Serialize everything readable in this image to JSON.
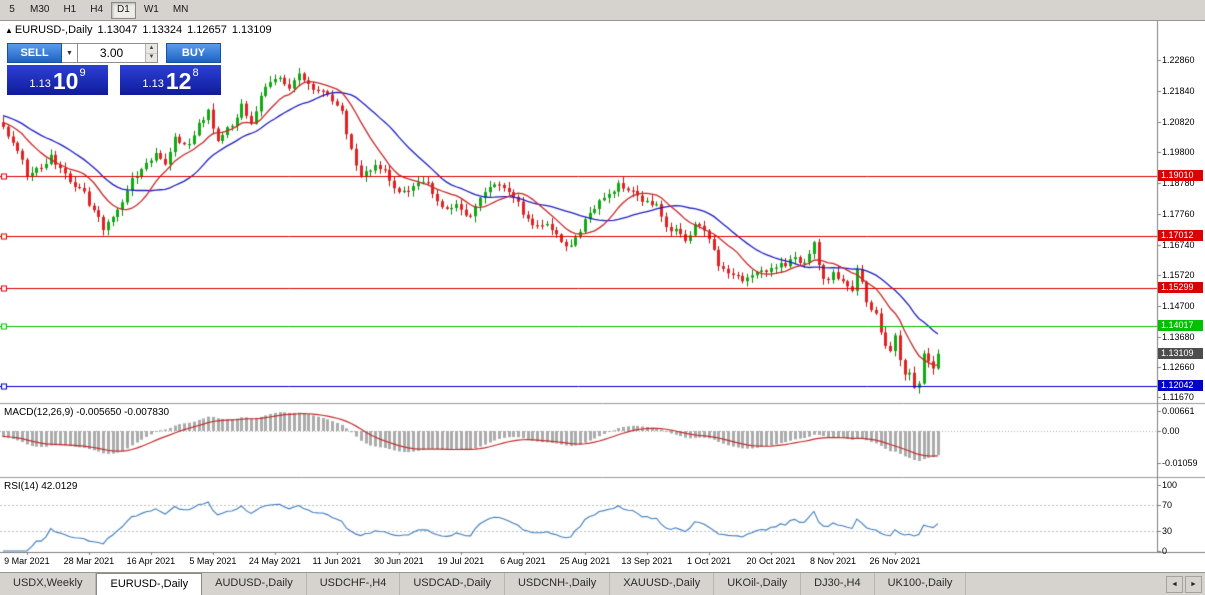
{
  "toolbar": {
    "timeframes": [
      {
        "label": "5",
        "active": false
      },
      {
        "label": "M30",
        "active": false
      },
      {
        "label": "H1",
        "active": false
      },
      {
        "label": "H4",
        "active": false
      },
      {
        "label": "D1",
        "active": true
      },
      {
        "label": "W1",
        "active": false
      },
      {
        "label": "MN",
        "active": false
      }
    ]
  },
  "chart": {
    "title": "EURUSD-,Daily",
    "ohlc": {
      "open": "1.13047",
      "high": "1.13324",
      "low": "1.12657",
      "close": "1.13109"
    },
    "trade_panel": {
      "sell_label": "SELL",
      "buy_label": "BUY",
      "lot_size": "3.00",
      "sell_price": {
        "small": "1.13",
        "big": "10",
        "sup": "9"
      },
      "buy_price": {
        "small": "1.13",
        "big": "12",
        "sup": "8"
      }
    },
    "levels": [
      {
        "label": "1.19010",
        "value": 1.1901,
        "color": "#dd0000"
      },
      {
        "label": "1.17012",
        "value": 1.17012,
        "color": "#dd0000"
      },
      {
        "label": "1.15299",
        "value": 1.15299,
        "color": "#dd0000"
      },
      {
        "label": "1.14017",
        "value": 1.14017,
        "color": "#00c000"
      },
      {
        "label": "1.12042",
        "value": 1.12042,
        "color": "#0000cc"
      }
    ],
    "current_price": {
      "label": "1.13109",
      "value": 1.13109,
      "bg": "#4d4d4d"
    },
    "y_axis": [
      "1.22860",
      "1.21840",
      "1.20820",
      "1.19800",
      "1.18780",
      "1.17760",
      "1.16740",
      "1.15720",
      "1.14700",
      "1.13680",
      "1.12660",
      "1.11670"
    ],
    "x_axis": [
      "9 Mar 2021",
      "28 Mar 2021",
      "16 Apr 2021",
      "5 May 2021",
      "24 May 2021",
      "11 Jun 2021",
      "30 Jun 2021",
      "19 Jul 2021",
      "6 Aug 2021",
      "25 Aug 2021",
      "13 Sep 2021",
      "1 Oct 2021",
      "20 Oct 2021",
      "8 Nov 2021",
      "26 Nov 2021"
    ]
  },
  "macd": {
    "label": "MACD(12,26,9) -0.005650 -0.007830",
    "scale": [
      "0.00661",
      "0.00",
      "-0.01059"
    ]
  },
  "rsi": {
    "label": "RSI(14) 42.0129",
    "scale": [
      "100",
      "70",
      "30",
      "0"
    ]
  },
  "tabs": [
    {
      "label": "USDX,Weekly",
      "active": false
    },
    {
      "label": "EURUSD-,Daily",
      "active": true
    },
    {
      "label": "AUDUSD-,Daily",
      "active": false
    },
    {
      "label": "USDCHF-,H4",
      "active": false
    },
    {
      "label": "USDCAD-,Daily",
      "active": false
    },
    {
      "label": "USDCNH-,Daily",
      "active": false
    },
    {
      "label": "XAUUSD-,Daily",
      "active": false
    },
    {
      "label": "UKOil-,Daily",
      "active": false
    },
    {
      "label": "DJ30-,H4",
      "active": false
    },
    {
      "label": "UK100-,Daily",
      "active": false
    }
  ],
  "tab_nav": {
    "left": "◄",
    "right": "►"
  },
  "chart_data": {
    "type": "candlestick",
    "symbol": "EURUSD-",
    "timeframe": "Daily",
    "visible_range": {
      "price_min": 1.1155,
      "price_max": 1.239,
      "start_label": "9 Mar 2021",
      "end_label": "26 Nov 2021"
    },
    "last_ohlc": {
      "open": 1.13047,
      "high": 1.13324,
      "low": 1.12657,
      "close": 1.13109
    },
    "close_path": [
      [
        0,
        1.2065
      ],
      [
        3,
        1.1985
      ],
      [
        5,
        1.19
      ],
      [
        8,
        1.1928
      ],
      [
        10,
        1.1972
      ],
      [
        13,
        1.191
      ],
      [
        16,
        1.1862
      ],
      [
        19,
        1.1788
      ],
      [
        21,
        1.1722
      ],
      [
        24,
        1.179
      ],
      [
        27,
        1.1895
      ],
      [
        30,
        1.1945
      ],
      [
        32,
        1.1978
      ],
      [
        34,
        1.194
      ],
      [
        36,
        1.2032
      ],
      [
        39,
        1.2008
      ],
      [
        41,
        1.2078
      ],
      [
        43,
        1.2122
      ],
      [
        45,
        1.2018
      ],
      [
        48,
        1.2068
      ],
      [
        50,
        1.2142
      ],
      [
        52,
        1.2075
      ],
      [
        55,
        1.2198
      ],
      [
        58,
        1.2228
      ],
      [
        60,
        1.2192
      ],
      [
        62,
        1.2242
      ],
      [
        65,
        1.2188
      ],
      [
        68,
        1.2172
      ],
      [
        71,
        1.2118
      ],
      [
        73,
        1.1992
      ],
      [
        75,
        1.1902
      ],
      [
        78,
        1.1938
      ],
      [
        80,
        1.1922
      ],
      [
        83,
        1.1848
      ],
      [
        86,
        1.1868
      ],
      [
        89,
        1.1878
      ],
      [
        92,
        1.1798
      ],
      [
        95,
        1.1808
      ],
      [
        98,
        1.1768
      ],
      [
        101,
        1.1848
      ],
      [
        104,
        1.1872
      ],
      [
        107,
        1.1832
      ],
      [
        110,
        1.176
      ],
      [
        112,
        1.1738
      ],
      [
        114,
        1.1742
      ],
      [
        116,
        1.1708
      ],
      [
        118,
        1.1668
      ],
      [
        120,
        1.1698
      ],
      [
        122,
        1.1758
      ],
      [
        124,
        1.1792
      ],
      [
        127,
        1.1842
      ],
      [
        129,
        1.1878
      ],
      [
        132,
        1.1852
      ],
      [
        134,
        1.1816
      ],
      [
        137,
        1.1808
      ],
      [
        139,
        1.1732
      ],
      [
        141,
        1.1726
      ],
      [
        143,
        1.1686
      ],
      [
        145,
        1.1742
      ],
      [
        148,
        1.1692
      ],
      [
        150,
        1.1602
      ],
      [
        152,
        1.1578
      ],
      [
        155,
        1.1552
      ],
      [
        157,
        1.1572
      ],
      [
        159,
        1.1588
      ],
      [
        161,
        1.1596
      ],
      [
        164,
        1.1602
      ],
      [
        166,
        1.1632
      ],
      [
        168,
        1.1614
      ],
      [
        170,
        1.1682
      ],
      [
        171,
        1.1606
      ],
      [
        172,
        1.156
      ],
      [
        174,
        1.1582
      ],
      [
        176,
        1.1552
      ],
      [
        178,
        1.152
      ],
      [
        179,
        1.1592
      ],
      [
        181,
        1.1482
      ],
      [
        183,
        1.1445
      ],
      [
        184,
        1.1382
      ],
      [
        186,
        1.132
      ],
      [
        187,
        1.1372
      ],
      [
        188,
        1.129
      ],
      [
        189,
        1.1242
      ],
      [
        190,
        1.1248
      ],
      [
        191,
        1.1198
      ],
      [
        192,
        1.1212
      ],
      [
        193,
        1.1312
      ],
      [
        194,
        1.1286
      ],
      [
        195,
        1.1262
      ],
      [
        196,
        1.1311
      ]
    ],
    "x_tick_indices": [
      5,
      18,
      31,
      44,
      57,
      70,
      83,
      96,
      109,
      122,
      135,
      148,
      161,
      174,
      187
    ],
    "horizontal_levels": [
      {
        "value": 1.1901,
        "color": "#dd0000"
      },
      {
        "value": 1.17012,
        "color": "#dd0000"
      },
      {
        "value": 1.15299,
        "color": "#dd0000"
      },
      {
        "value": 1.14017,
        "color": "#00c000"
      },
      {
        "value": 1.12042,
        "color": "#0000cc"
      }
    ],
    "moving_averages": [
      {
        "period": 10,
        "color": "#c82828"
      },
      {
        "period": 21,
        "color": "#2020c0"
      }
    ],
    "indicators": [
      {
        "name": "MACD",
        "params": [
          12,
          26,
          9
        ],
        "current": [
          -0.00565,
          -0.00783
        ],
        "scale_values": [
          0.00661,
          0,
          -0.01059
        ]
      },
      {
        "name": "RSI",
        "params": [
          14
        ],
        "current": 42.0129,
        "levels": [
          70,
          30
        ],
        "scale_values": [
          100,
          70,
          30,
          0
        ]
      }
    ],
    "candle_up_color": "#12a912",
    "candle_down_color": "#e22222",
    "rsi_color": "#3f7cbf",
    "macd_histogram_color": "#ababab",
    "macd_signal_color": "#c03030"
  }
}
